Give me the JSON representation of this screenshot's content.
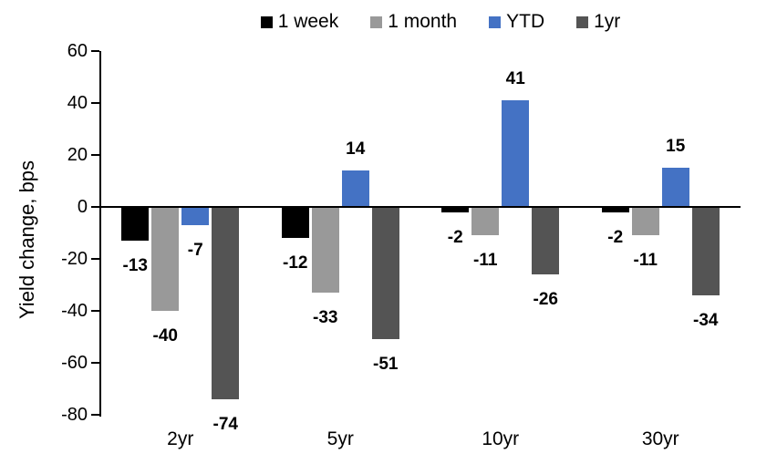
{
  "chart_data": {
    "type": "bar",
    "title": "",
    "categories": [
      "2yr",
      "5yr",
      "10yr",
      "30yr"
    ],
    "series": [
      {
        "name": "1 week",
        "color": "#000000",
        "values": [
          -13,
          -12,
          -2,
          -2
        ]
      },
      {
        "name": "1 month",
        "color": "#999999",
        "values": [
          -40,
          -33,
          -11,
          -11
        ]
      },
      {
        "name": "YTD",
        "color": "#4472C4",
        "values": [
          -7,
          14,
          41,
          15
        ]
      },
      {
        "name": "1yr",
        "color": "#545454",
        "values": [
          -74,
          -51,
          -26,
          -34
        ]
      }
    ],
    "xlabel": "",
    "ylabel": "Yield change, bps",
    "ylim": [
      -80,
      60
    ],
    "yticks": [
      60,
      40,
      20,
      0,
      -20,
      -40,
      -60,
      -80
    ],
    "grid": false,
    "legend_position": "top-center",
    "data_labels": "bold, outside end"
  }
}
